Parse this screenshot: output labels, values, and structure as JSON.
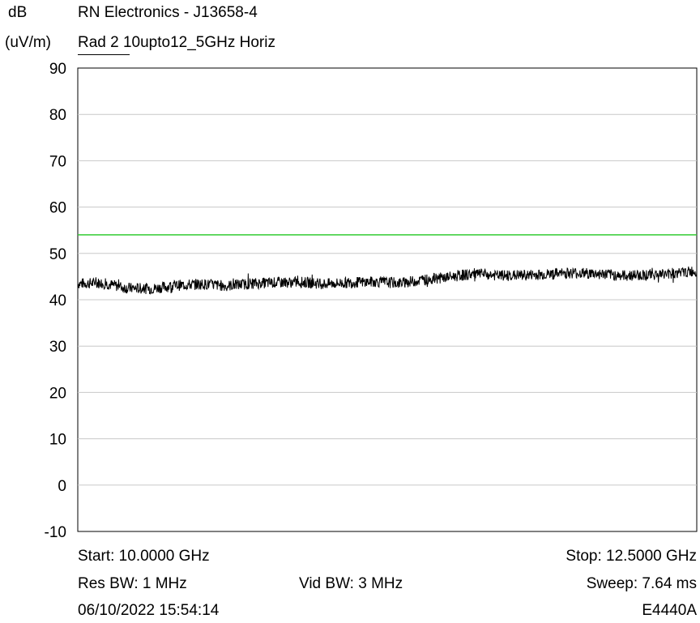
{
  "chart_data": {
    "type": "line",
    "title": "RN Electronics - J13658-4",
    "subtitle": "Rad 2 10upto12_5GHz Horiz",
    "legend_series": "Rad 2",
    "ylabel_line1": "dB",
    "ylabel_line2": "(uV/m)",
    "ylim": [
      -10,
      90
    ],
    "xlim": [
      10.0,
      12.5
    ],
    "x_unit": "GHz",
    "yticks": [
      90,
      80,
      70,
      60,
      50,
      40,
      30,
      20,
      10,
      0,
      -10
    ],
    "grid": true,
    "series": [
      {
        "name": "Rad 2",
        "color": "#000000",
        "x": [
          10.0,
          10.1,
          10.2,
          10.3,
          10.4,
          10.5,
          10.6,
          10.7,
          10.8,
          10.9,
          11.0,
          11.1,
          11.2,
          11.3,
          11.4,
          11.5,
          11.6,
          11.7,
          11.8,
          11.9,
          12.0,
          12.1,
          12.2,
          12.3,
          12.4,
          12.5
        ],
        "values": [
          43.5,
          43.6,
          42.5,
          42.4,
          43.1,
          43.4,
          43.0,
          43.5,
          43.7,
          43.8,
          43.4,
          43.7,
          43.9,
          43.6,
          44.3,
          44.9,
          45.6,
          45.2,
          45.3,
          45.5,
          45.8,
          45.6,
          45.2,
          45.4,
          45.6,
          46.2
        ]
      }
    ],
    "limit_line": {
      "value": 54,
      "color": "#33cc33"
    }
  },
  "footer": {
    "start": "Start: 10.0000 GHz",
    "stop": "Stop: 12.5000 GHz",
    "res_bw": "Res BW: 1 MHz",
    "vid_bw": "Vid BW: 3 MHz",
    "sweep": "Sweep: 7.64 ms",
    "datetime": "06/10/2022 15:54:14",
    "model": "E4440A"
  }
}
